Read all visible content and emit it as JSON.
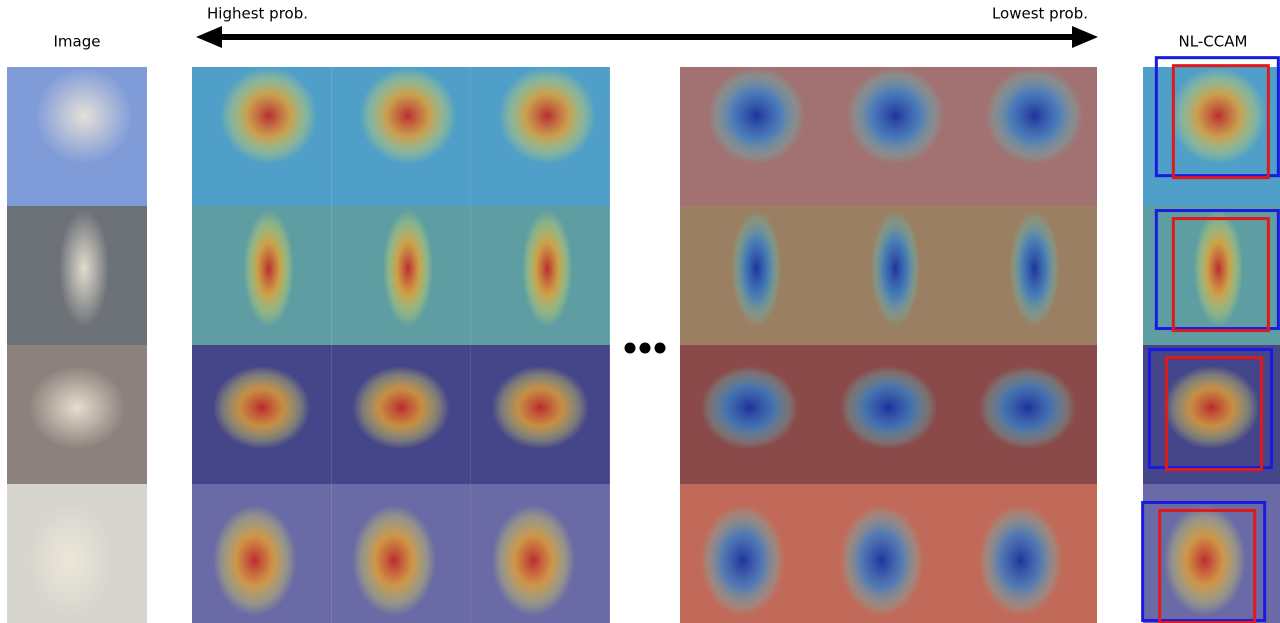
{
  "labels": {
    "image": "Image",
    "highest": "Highest prob.",
    "lowest": "Lowest prob.",
    "method": "NL-CCAM"
  }
}
